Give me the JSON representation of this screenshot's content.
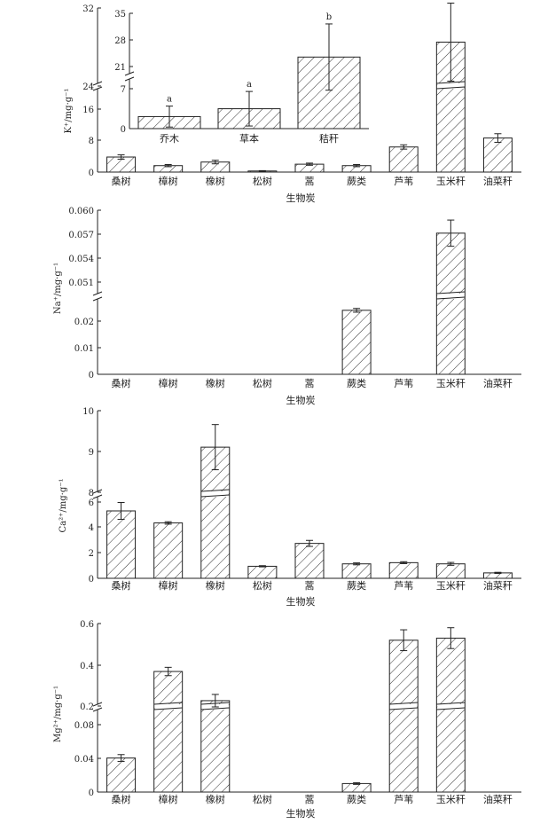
{
  "chart_data": [
    {
      "type": "bar",
      "panel": "K",
      "ylabel": "K⁺/mg·g⁻¹",
      "xlabel": "生物炭",
      "categories": [
        "桑树",
        "樟树",
        "橡树",
        "松树",
        "蒿",
        "蕨类",
        "芦苇",
        "玉米秆",
        "油菜秆"
      ],
      "values": [
        4.2,
        1.8,
        2.8,
        0.3,
        2.2,
        1.8,
        7.0,
        28.5,
        9.5
      ],
      "errors": [
        0.6,
        0.3,
        0.5,
        0.1,
        0.3,
        0.3,
        0.6,
        4.0,
        1.2
      ],
      "yticks_lower": [
        0,
        8,
        16,
        24
      ],
      "yticks_upper": [
        32
      ],
      "axis_break": true,
      "inset": {
        "type": "bar",
        "categories": [
          "乔木",
          "草本",
          "秸秆"
        ],
        "values": [
          2.3,
          3.8,
          21.8
        ],
        "errors": [
          2.0,
          3.3,
          10.0
        ],
        "letters": [
          "a",
          "a",
          "b"
        ],
        "yticks_lower": [
          0,
          7
        ],
        "yticks_upper": [
          21,
          28,
          35
        ],
        "axis_break": true
      }
    },
    {
      "type": "bar",
      "panel": "Na",
      "ylabel": "Na⁺/mg·g⁻¹",
      "xlabel": "生物炭",
      "categories": [
        "桑树",
        "樟树",
        "橡树",
        "松树",
        "蒿",
        "蕨类",
        "芦苇",
        "玉米秆",
        "油菜秆"
      ],
      "values": [
        0,
        0,
        0,
        0,
        0,
        0.0205,
        0,
        0.0572,
        0
      ],
      "errors": [
        0,
        0,
        0,
        0,
        0,
        0.0006,
        0,
        0.0016,
        0
      ],
      "yticks_lower": [
        "0",
        "0.01",
        "0.02"
      ],
      "yticks_upper": [
        "0.051",
        "0.054",
        "0.057",
        "0.060"
      ],
      "axis_break": true
    },
    {
      "type": "bar",
      "panel": "Ca",
      "ylabel": "Ca²⁺/mg·g⁻¹",
      "xlabel": "生物炭",
      "categories": [
        "桑树",
        "樟树",
        "橡树",
        "松树",
        "蒿",
        "蕨类",
        "芦苇",
        "玉米秆",
        "油菜秆"
      ],
      "values": [
        5.6,
        4.6,
        8.95,
        1.0,
        2.9,
        1.2,
        1.3,
        1.2,
        0.45
      ],
      "errors": [
        0.7,
        0.1,
        0.65,
        0.05,
        0.25,
        0.08,
        0.08,
        0.12,
        0.05
      ],
      "yticks_lower": [
        0,
        2,
        4,
        6
      ],
      "yticks_upper": [
        8,
        9,
        10
      ],
      "axis_break": true
    },
    {
      "type": "bar",
      "panel": "Mg",
      "ylabel": "Mg²⁺/mg·g⁻¹",
      "xlabel": "生物炭",
      "categories": [
        "桑树",
        "樟树",
        "橡树",
        "松树",
        "蒿",
        "蕨类",
        "芦苇",
        "玉米秆",
        "油菜秆"
      ],
      "values": [
        0.04,
        0.37,
        0.23,
        0,
        0,
        0.01,
        0.52,
        0.53,
        0
      ],
      "errors": [
        0.004,
        0.02,
        0.03,
        0,
        0,
        0.001,
        0.05,
        0.05,
        0
      ],
      "yticks_lower": [
        "0",
        "0.04",
        "0.08"
      ],
      "yticks_upper": [
        "0.2",
        "0.4",
        "0.6"
      ],
      "axis_break": true
    }
  ]
}
